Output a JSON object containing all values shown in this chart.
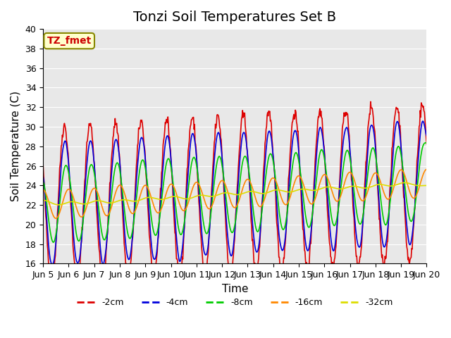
{
  "title": "Tonzi Soil Temperatures Set B",
  "xlabel": "Time",
  "ylabel": "Soil Temperature (C)",
  "xlim_days": [
    0,
    15
  ],
  "ylim": [
    16,
    40
  ],
  "yticks": [
    16,
    18,
    20,
    22,
    24,
    26,
    28,
    30,
    32,
    34,
    36,
    38,
    40
  ],
  "xtick_labels": [
    "Jun 5",
    "Jun 6",
    "Jun 7",
    "Jun 8",
    "Jun 9",
    "Jun 10",
    "Jun 11",
    "Jun 12",
    "Jun 13",
    "Jun 14",
    "Jun 15",
    "Jun 16",
    "Jun 17",
    "Jun 18",
    "Jun 19",
    "Jun 20"
  ],
  "series": {
    "-2cm": {
      "color": "#dd0000",
      "lw": 1.2
    },
    "-4cm": {
      "color": "#0000dd",
      "lw": 1.2
    },
    "-8cm": {
      "color": "#00cc00",
      "lw": 1.2
    },
    "-16cm": {
      "color": "#ff8800",
      "lw": 1.2
    },
    "-32cm": {
      "color": "#dddd00",
      "lw": 1.2
    }
  },
  "annotation_text": "TZ_fmet",
  "annotation_box_color": "#ffffcc",
  "annotation_border_color": "#888800",
  "bg_color": "#e8e8e8",
  "title_fontsize": 14,
  "axis_label_fontsize": 11,
  "tick_fontsize": 9
}
